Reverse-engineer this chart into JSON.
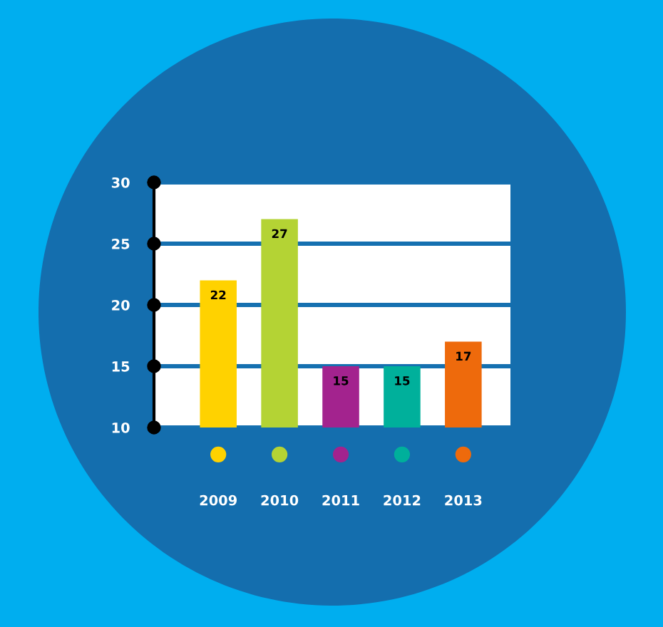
{
  "chart_data": {
    "type": "bar",
    "categories": [
      "2009",
      "2010",
      "2011",
      "2012",
      "2013"
    ],
    "values": [
      22,
      27,
      15,
      15,
      17
    ],
    "colors": [
      "#ffd200",
      "#b4d334",
      "#a3238e",
      "#00b09b",
      "#ee6a0c"
    ],
    "ylim": [
      10,
      30
    ],
    "yticks": [
      10,
      15,
      20,
      25,
      30
    ],
    "grid": "y",
    "data_labels": true
  }
}
